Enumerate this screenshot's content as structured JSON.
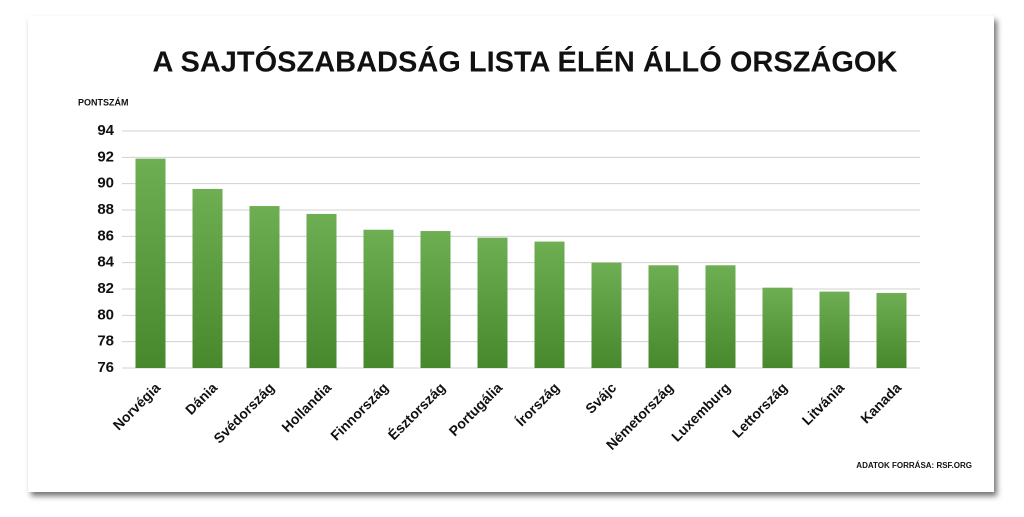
{
  "chart_data": {
    "type": "bar",
    "title": "A SAJTÓSZABADSÁG LISTA ÉLÉN ÁLLÓ ORSZÁGOK",
    "y_label": "PONTSZÁM",
    "source": "ADATOK FORRÁSA: RSF.ORG",
    "categories": [
      "Norvégia",
      "Dánia",
      "Svédország",
      "Hollandia",
      "Finnország",
      "Észtország",
      "Portugália",
      "Írország",
      "Svájc",
      "Németország",
      "Luxemburg",
      "Lettország",
      "Litvánia",
      "Kanada"
    ],
    "values": [
      91.9,
      89.6,
      88.3,
      87.7,
      86.5,
      86.4,
      85.9,
      85.6,
      84.0,
      83.8,
      83.8,
      82.1,
      81.8,
      81.7
    ],
    "color": "#55a035",
    "ylim": [
      76,
      94
    ],
    "yticks": [
      76,
      78,
      80,
      82,
      84,
      86,
      88,
      90,
      92,
      94
    ],
    "grid": true
  }
}
